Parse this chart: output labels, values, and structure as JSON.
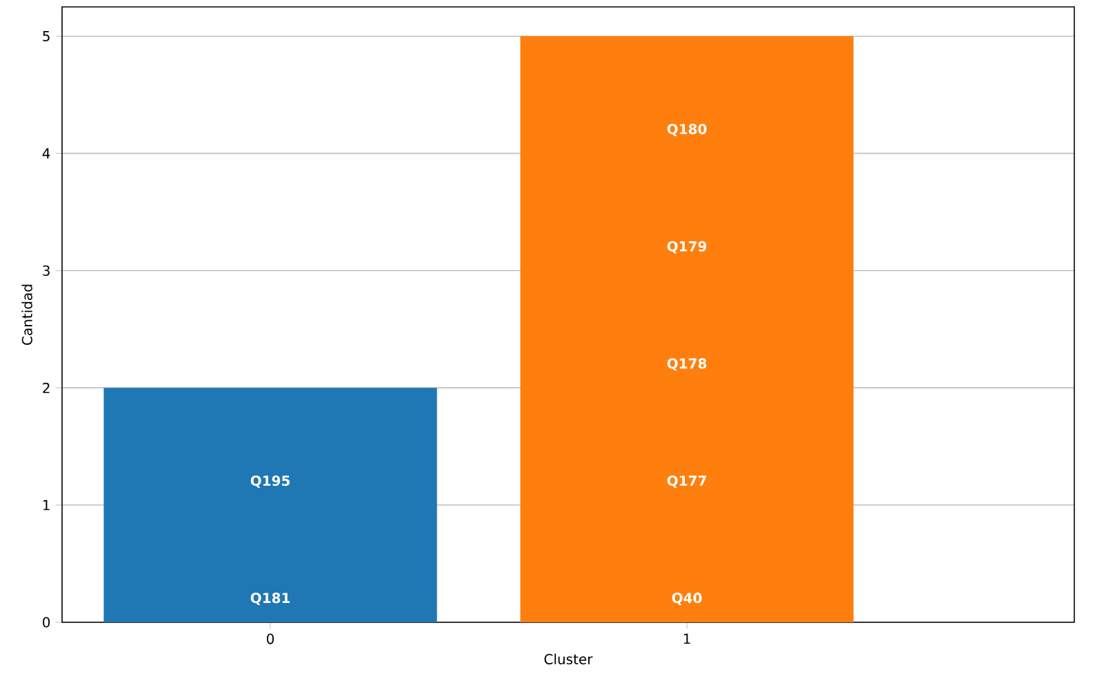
{
  "chart_data": {
    "type": "bar",
    "xlabel": "Cluster",
    "ylabel": "Cantidad",
    "categories": [
      "0",
      "1"
    ],
    "values": [
      2,
      5
    ],
    "colors": [
      "#1f77b4",
      "#ff7f0e"
    ],
    "ylim": [
      0,
      5.25
    ],
    "yticks": [
      0,
      1,
      2,
      3,
      4,
      5
    ],
    "grid": "y",
    "annotations": [
      "Q181",
      "Q195",
      "Q40",
      "Q177",
      "Q178",
      "Q179",
      "Q180"
    ]
  }
}
